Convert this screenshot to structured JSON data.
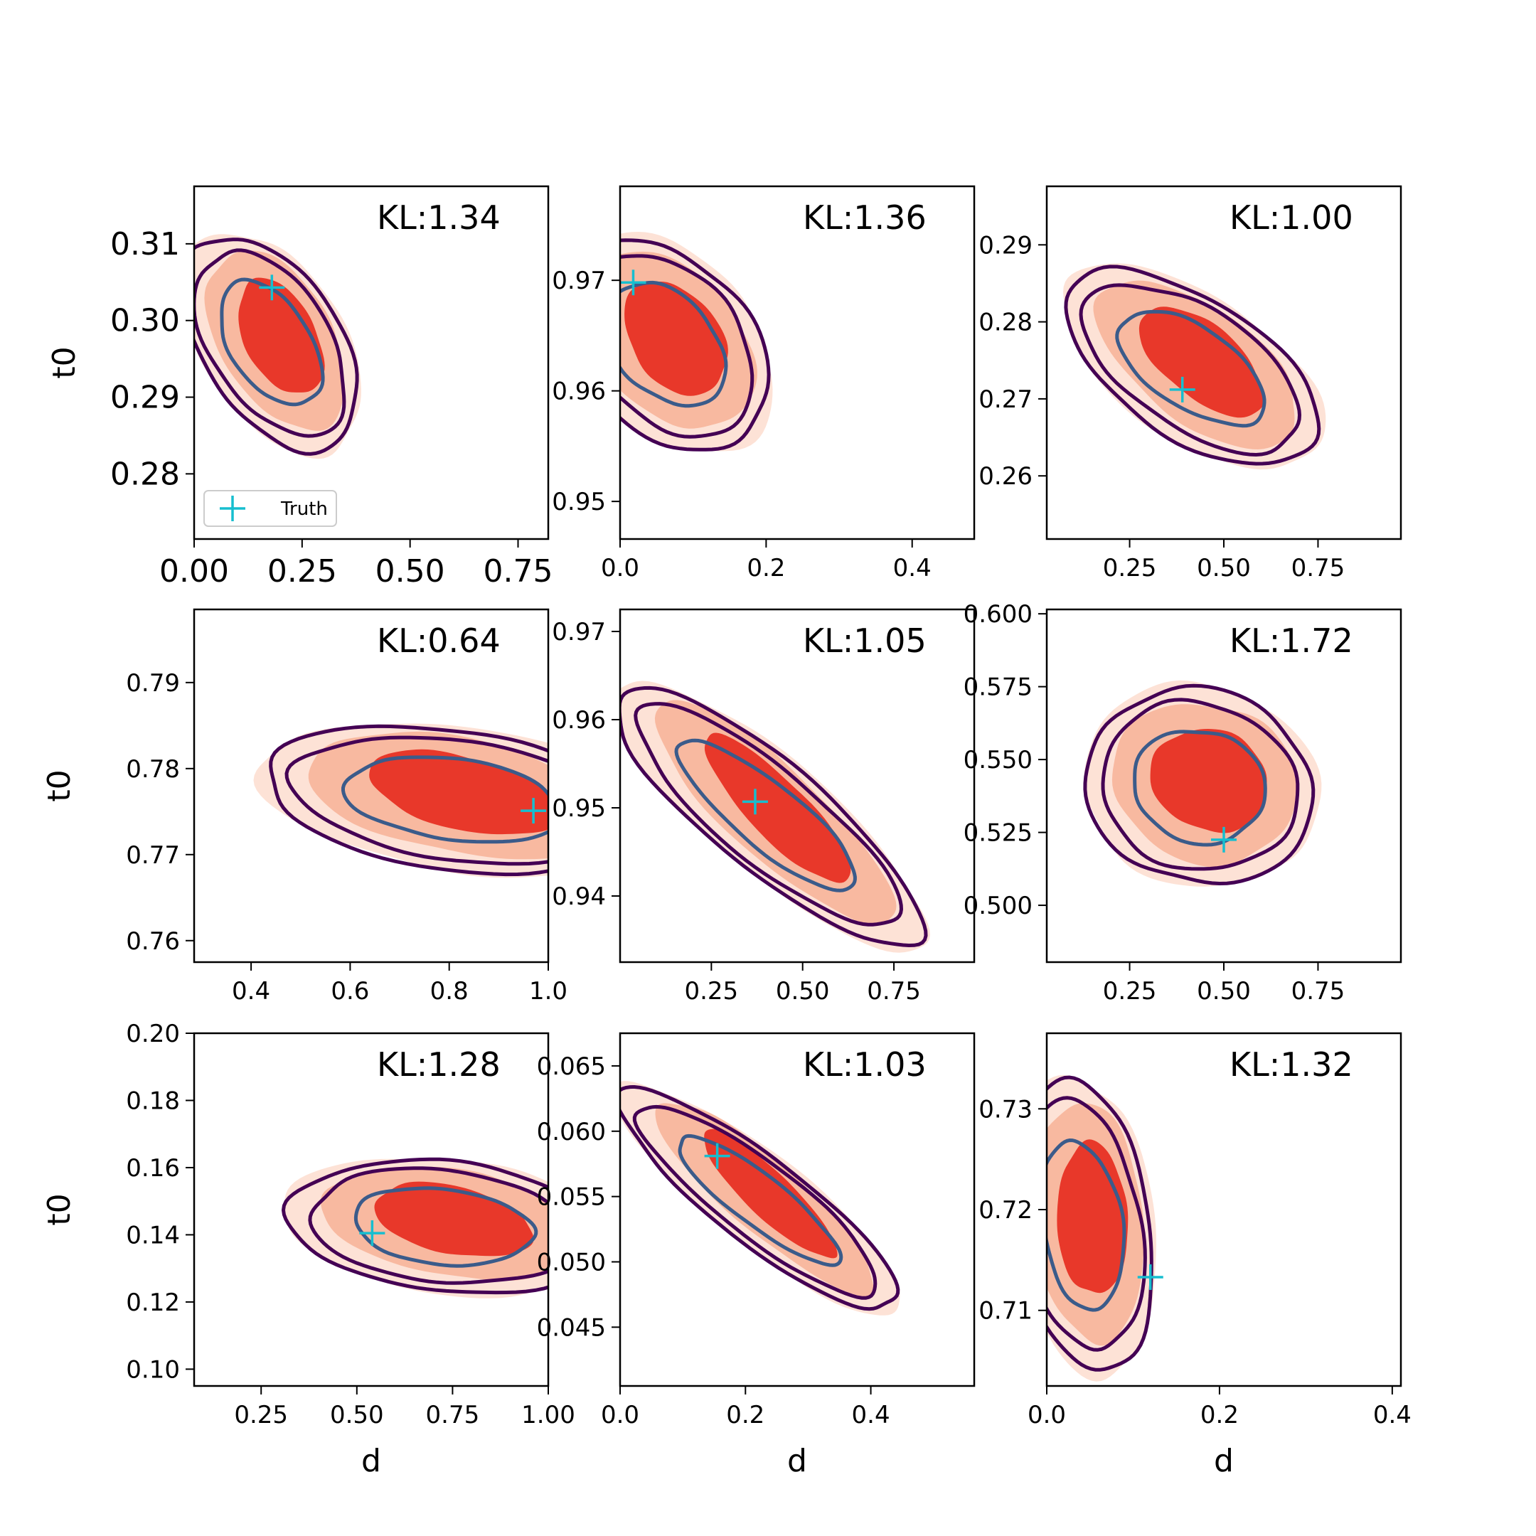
{
  "chart_data": [
    {
      "type": "contour",
      "subplot": "row1-col1",
      "annotation": "KL:1.34",
      "xlabel": "",
      "ylabel": "t0",
      "xlim": [
        0.0,
        0.82
      ],
      "ylim": [
        0.2715,
        0.3175
      ],
      "xticks": [
        0.0,
        0.25,
        0.5,
        0.75
      ],
      "xtick_labels": [
        "0.00",
        "0.25",
        "0.50",
        "0.75"
      ],
      "yticks": [
        0.28,
        0.29,
        0.3,
        0.31
      ],
      "ytick_labels": [
        "0.28",
        "0.29",
        "0.30",
        "0.31"
      ],
      "large_ticks": true,
      "truth": [
        0.18,
        0.3043
      ],
      "center": [
        0.19,
        0.2975
      ],
      "sx": 0.078,
      "sy": 0.0057,
      "rho": -0.45,
      "legend": {
        "label": "Truth",
        "placement": "lower-left"
      }
    },
    {
      "type": "contour",
      "subplot": "row1-col2",
      "annotation": "KL:1.36",
      "xlabel": "",
      "ylabel": "",
      "xlim": [
        0.0,
        0.485
      ],
      "ylim": [
        0.9466,
        0.9785
      ],
      "xticks": [
        0.0,
        0.2,
        0.4
      ],
      "xtick_labels": [
        "0.0",
        "0.2",
        "0.4"
      ],
      "yticks": [
        0.95,
        0.96,
        0.97
      ],
      "ytick_labels": [
        "0.95",
        "0.96",
        "0.97"
      ],
      "truth": [
        0.018,
        0.9698
      ],
      "center": [
        0.07,
        0.9645
      ],
      "sx": 0.055,
      "sy": 0.0039,
      "rho": -0.35
    },
    {
      "type": "contour",
      "subplot": "row1-col3",
      "annotation": "KL:1.00",
      "xlabel": "",
      "ylabel": "",
      "xlim": [
        0.03,
        0.97
      ],
      "ylim": [
        0.2518,
        0.2976
      ],
      "xticks": [
        0.25,
        0.5,
        0.75
      ],
      "xtick_labels": [
        "0.25",
        "0.50",
        "0.75"
      ],
      "yticks": [
        0.26,
        0.27,
        0.28,
        0.29
      ],
      "ytick_labels": [
        "0.26",
        "0.27",
        "0.28",
        "0.29"
      ],
      "truth": [
        0.39,
        0.2712
      ],
      "center": [
        0.43,
        0.2745
      ],
      "sx": 0.13,
      "sy": 0.0053,
      "rho": -0.6
    },
    {
      "type": "contour",
      "subplot": "row2-col1",
      "annotation": "KL:0.64",
      "xlabel": "",
      "ylabel": "t0",
      "xlim": [
        0.285,
        1.0
      ],
      "ylim": [
        0.7575,
        0.7985
      ],
      "xticks": [
        0.4,
        0.6,
        0.8,
        1.0
      ],
      "xtick_labels": [
        "0.4",
        "0.6",
        "0.8",
        "1.0"
      ],
      "yticks": [
        0.76,
        0.77,
        0.78,
        0.79
      ],
      "ytick_labels": [
        "0.76",
        "0.77",
        "0.78",
        "0.79"
      ],
      "truth": [
        0.97,
        0.7751
      ],
      "center": [
        0.82,
        0.7768
      ],
      "sx": 0.15,
      "sy": 0.0036,
      "rho": -0.4
    },
    {
      "type": "contour",
      "subplot": "row2-col2",
      "annotation": "KL:1.05",
      "xlabel": "",
      "ylabel": "",
      "xlim": [
        0.0,
        0.97
      ],
      "ylim": [
        0.9325,
        0.9725
      ],
      "xticks": [
        0.25,
        0.5,
        0.75
      ],
      "xtick_labels": [
        "0.25",
        "0.50",
        "0.75"
      ],
      "yticks": [
        0.94,
        0.95,
        0.96,
        0.97
      ],
      "ytick_labels": [
        "0.94",
        "0.95",
        "0.96",
        "0.97"
      ],
      "truth": [
        0.37,
        0.9507
      ],
      "center": [
        0.42,
        0.9495
      ],
      "sx": 0.16,
      "sy": 0.0062,
      "rho": -0.85
    },
    {
      "type": "contour",
      "subplot": "row2-col3",
      "annotation": "KL:1.72",
      "xlabel": "",
      "ylabel": "",
      "xlim": [
        0.03,
        0.97
      ],
      "ylim": [
        0.4805,
        0.6015
      ],
      "xticks": [
        0.25,
        0.5,
        0.75
      ],
      "xtick_labels": [
        "0.25",
        "0.50",
        "0.75"
      ],
      "yticks": [
        0.5,
        0.525,
        0.55,
        0.575,
        0.6
      ],
      "ytick_labels": [
        "0.500",
        "0.525",
        "0.550",
        "0.575",
        "0.600"
      ],
      "truth": [
        0.5,
        0.5225
      ],
      "center": [
        0.45,
        0.542
      ],
      "sx": 0.12,
      "sy": 0.0135,
      "rho": -0.1
    },
    {
      "type": "contour",
      "subplot": "row3-col1",
      "annotation": "KL:1.28",
      "xlabel": "d",
      "ylabel": "t0",
      "xlim": [
        0.075,
        1.0
      ],
      "ylim": [
        0.095,
        0.2
      ],
      "xticks": [
        0.25,
        0.5,
        0.75,
        1.0
      ],
      "xtick_labels": [
        "0.25",
        "0.50",
        "0.75",
        "1.00"
      ],
      "yticks": [
        0.1,
        0.12,
        0.14,
        0.16,
        0.18,
        0.2
      ],
      "ytick_labels": [
        "0.10",
        "0.12",
        "0.14",
        "0.16",
        "0.18",
        "0.20"
      ],
      "truth": [
        0.54,
        0.1405
      ],
      "center": [
        0.74,
        0.1435
      ],
      "sx": 0.16,
      "sy": 0.0082,
      "rho": -0.3
    },
    {
      "type": "contour",
      "subplot": "row3-col2",
      "annotation": "KL:1.03",
      "xlabel": "d",
      "ylabel": "",
      "xlim": [
        0.0,
        0.565
      ],
      "ylim": [
        0.0405,
        0.0675
      ],
      "xticks": [
        0.0,
        0.2,
        0.4
      ],
      "xtick_labels": [
        "0.0",
        "0.2",
        "0.4"
      ],
      "yticks": [
        0.045,
        0.05,
        0.055,
        0.06,
        0.065
      ],
      "ytick_labels": [
        "0.045",
        "0.050",
        "0.055",
        "0.060",
        "0.065"
      ],
      "truth": [
        0.155,
        0.0581
      ],
      "center": [
        0.23,
        0.055
      ],
      "sx": 0.085,
      "sy": 0.0036,
      "rho": -0.88
    },
    {
      "type": "contour",
      "subplot": "row3-col3",
      "annotation": "KL:1.32",
      "xlabel": "d",
      "ylabel": "",
      "xlim": [
        0.0,
        0.41
      ],
      "ylim": [
        0.7025,
        0.7375
      ],
      "xticks": [
        0.0,
        0.2,
        0.4
      ],
      "xtick_labels": [
        "0.0",
        "0.2",
        "0.4"
      ],
      "yticks": [
        0.71,
        0.72,
        0.73
      ],
      "ytick_labels": [
        "0.71",
        "0.72",
        "0.73"
      ],
      "truth": [
        0.12,
        0.7133
      ],
      "center": [
        0.048,
        0.7188
      ],
      "sx": 0.032,
      "sy": 0.0058,
      "rho": -0.15
    }
  ],
  "legend_label": "Truth",
  "colors": {
    "fill_inner": "#e8382a",
    "fill_mid": "#f8b9a0",
    "fill_outer": "#fde2d6",
    "contour_outer": "#440154",
    "contour_inner": "#3b5b8a",
    "truth_marker": "#17becf"
  }
}
